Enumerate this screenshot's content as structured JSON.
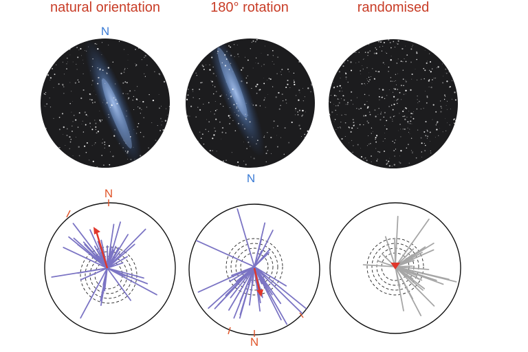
{
  "panels": [
    {
      "title": "natural orientation",
      "sky_label": "N",
      "plot_label": "N"
    },
    {
      "title": "180° rotation",
      "sky_label": "N",
      "plot_label": "N"
    },
    {
      "title": "randomised"
    }
  ],
  "colors": {
    "title": "#c83c26",
    "north_sky": "#3a7bd5",
    "north_plot": "#e0562a",
    "sky": "#1c1c1e",
    "path_natural": "#7b74c4",
    "path_random": "#a6a6a6",
    "mean_vector": "#e0362a"
  }
}
